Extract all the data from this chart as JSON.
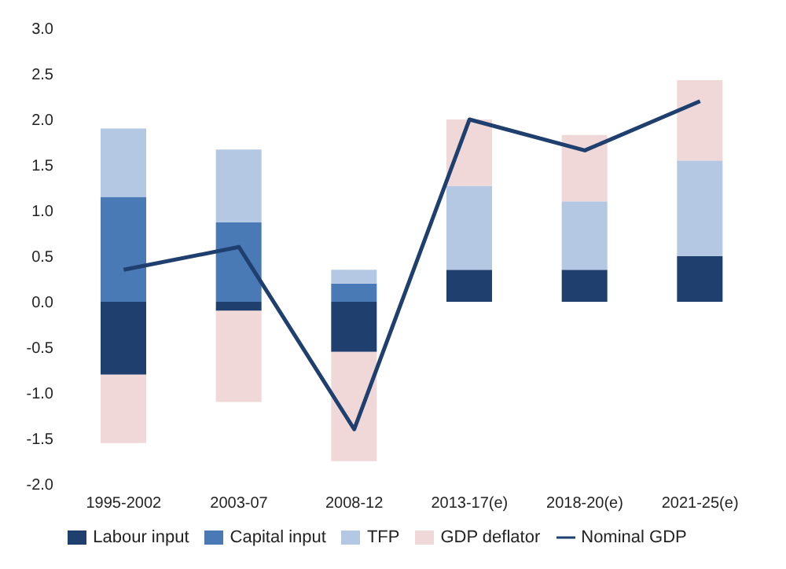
{
  "chart_data": {
    "type": "bar",
    "stacked": true,
    "categories": [
      "1995-2002",
      "2003-07",
      "2008-12",
      "2013-17(e)",
      "2018-20(e)",
      "2021-25(e)"
    ],
    "series": [
      {
        "name": "Labour input",
        "color": "#1f3f6e",
        "values": [
          -0.8,
          -0.1,
          -0.55,
          0.35,
          0.35,
          0.5
        ]
      },
      {
        "name": "Capital input",
        "color": "#4a7ab5",
        "values": [
          1.15,
          0.87,
          0.2,
          0,
          0,
          0
        ]
      },
      {
        "name": "TFP",
        "color": "#b4c8e4",
        "values": [
          0.75,
          0.8,
          0.15,
          0.92,
          0.75,
          1.05
        ]
      },
      {
        "name": "GDP deflator",
        "color": "#f0d8d8",
        "values": [
          -0.75,
          -1.0,
          -1.2,
          0.73,
          0.73,
          0.88
        ]
      },
      {
        "name": "Nominal GDP",
        "type": "line",
        "color": "#1f3f6e",
        "values": [
          0.35,
          0.6,
          -1.4,
          2.0,
          1.66,
          2.2
        ]
      }
    ],
    "ylim": [
      -2,
      3
    ],
    "yticks": [
      {
        "value": -2,
        "label": "-2.0"
      },
      {
        "value": -1.5,
        "label": "-1.5"
      },
      {
        "value": -1,
        "label": "-1.0"
      },
      {
        "value": -0.5,
        "label": "-0.5"
      },
      {
        "value": 0,
        "label": "0.0"
      },
      {
        "value": 0.5,
        "label": "0.5"
      },
      {
        "value": 1,
        "label": "1.0"
      },
      {
        "value": 1.5,
        "label": "1.5"
      },
      {
        "value": 2,
        "label": "2.0"
      },
      {
        "value": 2.5,
        "label": "2.5"
      },
      {
        "value": 3,
        "label": "3.0"
      }
    ],
    "grid": false,
    "legend": "bottom",
    "marker": "none",
    "line_style": "solid"
  }
}
